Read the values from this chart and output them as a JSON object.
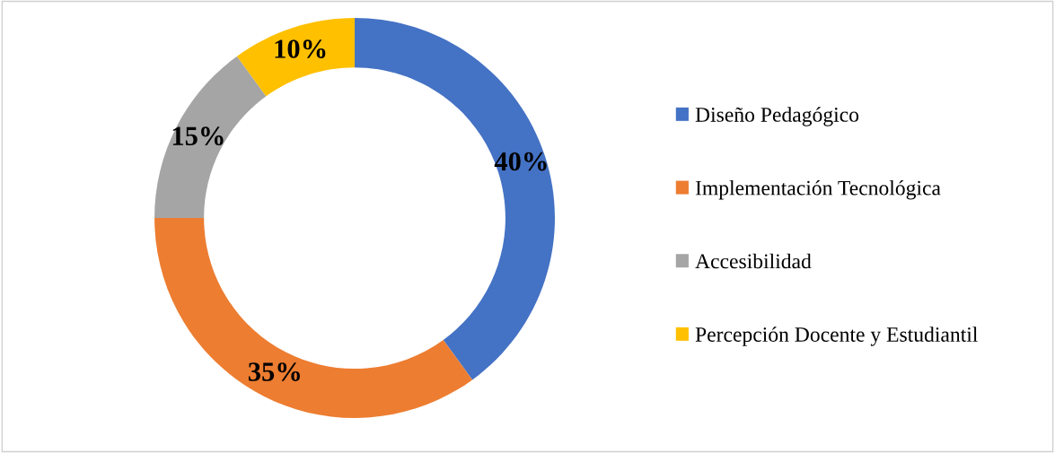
{
  "chart_data": {
    "type": "donut",
    "categories": [
      "Diseño Pedagógico",
      "Implementación Tecnológica",
      "Accesibilidad",
      "Percepción Docente y Estudiantil"
    ],
    "values": [
      40,
      35,
      15,
      10
    ],
    "colors": [
      "#4472c4",
      "#ed7d31",
      "#a5a5a5",
      "#ffc000"
    ],
    "value_labels": [
      "40%",
      "35%",
      "15%",
      "10%"
    ],
    "legend": "right"
  }
}
